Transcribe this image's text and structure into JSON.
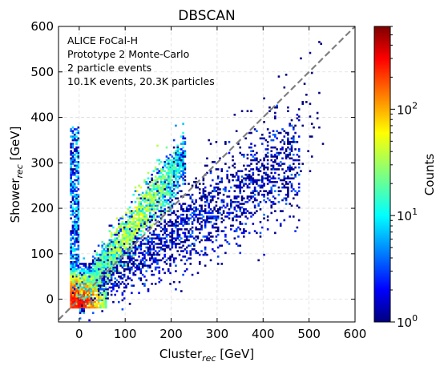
{
  "chart_data": {
    "type": "heatmap",
    "title": "DBSCAN",
    "xlabel": {
      "main": "Cluster",
      "sub": "rec",
      "unit": " [GeV]"
    },
    "ylabel": {
      "main": "Shower",
      "sub": "rec",
      "unit": " [GeV]"
    },
    "xlim": [
      -45,
      600
    ],
    "ylim": [
      -50,
      600
    ],
    "xticks": [
      0,
      100,
      200,
      300,
      400,
      500,
      600
    ],
    "yticks": [
      0,
      100,
      200,
      300,
      400,
      500,
      600
    ],
    "grid": true,
    "diagonal_reference": {
      "from": [
        -45,
        -45
      ],
      "to": [
        600,
        600
      ],
      "style": "dashed",
      "color": "#808080"
    },
    "annotation": [
      "ALICE FoCal-H",
      "Prototype 2 Monte-Carlo",
      "2 particle events",
      "10.1K events, 20.3K particles"
    ],
    "colorbar": {
      "label": "Counts",
      "scale": "log",
      "range": [
        1,
        600
      ],
      "ticks": [
        {
          "value": 1,
          "base": "10",
          "exp": "0"
        },
        {
          "value": 10,
          "base": "10",
          "exp": "1"
        },
        {
          "value": 100,
          "base": "10",
          "exp": "2"
        }
      ],
      "colormap": "jet"
    },
    "density_regions": [
      {
        "name": "main diagonal band",
        "x_range": [
          0,
          230
        ],
        "y_slope": 1.35,
        "y_offset": 5,
        "width": 35,
        "peak_counts": 60
      },
      {
        "name": "lower band",
        "x_range": [
          0,
          480
        ],
        "y_slope": 0.62,
        "y_offset": 10,
        "width": 45,
        "peak_counts": 4
      },
      {
        "name": "zero-cluster column",
        "x_range": [
          -20,
          0
        ],
        "y_range": [
          -20,
          380
        ],
        "peak_counts": 12
      },
      {
        "name": "low-energy core",
        "x_range": [
          -20,
          60
        ],
        "y_range": [
          -20,
          80
        ],
        "peak_counts": 400
      }
    ]
  }
}
